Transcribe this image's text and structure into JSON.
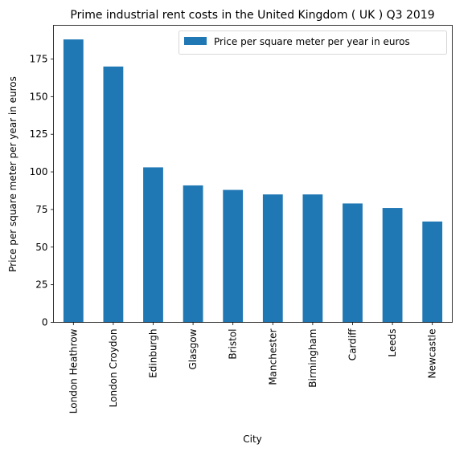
{
  "chart_data": {
    "type": "bar",
    "title": "Prime industrial rent costs in the United Kingdom ( UK ) Q3 2019",
    "xlabel": "City",
    "ylabel": "Price per square meter per year in euros",
    "categories": [
      "London Heathrow",
      "London Croydon",
      "Edinburgh",
      "Glasgow",
      "Bristol",
      "Manchester",
      "Birmingham",
      "Cardiff",
      "Leeds",
      "Newcastle"
    ],
    "series": [
      {
        "name": "Price per square meter per year in euros",
        "values": [
          188,
          170,
          103,
          91,
          88,
          85,
          85,
          79,
          76,
          67
        ],
        "color": "#1f77b4"
      }
    ],
    "ylim": [
      0,
      197.4
    ],
    "yticks": [
      0,
      25,
      50,
      75,
      100,
      125,
      150,
      175
    ],
    "grid": false,
    "legend": "top-right"
  }
}
